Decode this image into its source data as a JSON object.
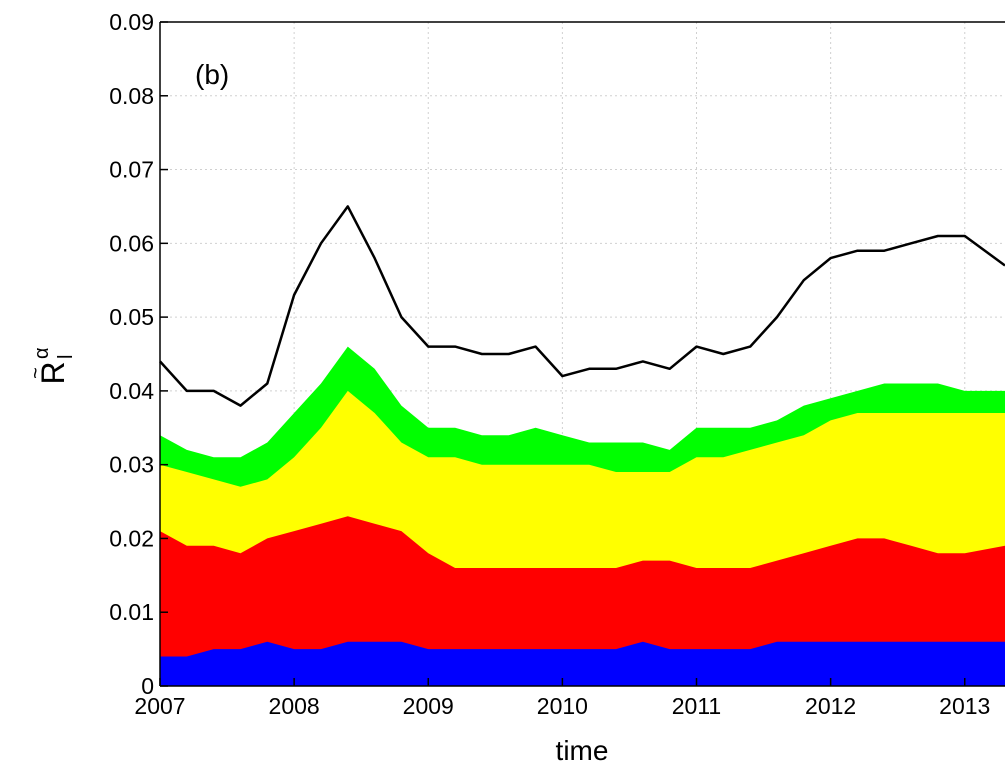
{
  "chart_data": {
    "type": "area",
    "panel_label": "(b)",
    "title": "",
    "xlabel": "time",
    "ylabel": {
      "base": "R",
      "accent": "~",
      "subscript": "l",
      "superscript": "α"
    },
    "xlim": [
      2007,
      2013.3
    ],
    "ylim": [
      0,
      0.09
    ],
    "x_ticks": [
      2007,
      2008,
      2009,
      2010,
      2011,
      2012,
      2013
    ],
    "x_tick_labels": [
      "2007",
      "2008",
      "2009",
      "2010",
      "2011",
      "2012",
      "2013"
    ],
    "y_ticks": [
      0,
      0.01,
      0.02,
      0.03,
      0.04,
      0.05,
      0.06,
      0.07,
      0.08,
      0.09
    ],
    "y_tick_labels": [
      "0",
      "0.01",
      "0.02",
      "0.03",
      "0.04",
      "0.05",
      "0.06",
      "0.07",
      "0.08",
      "0.09"
    ],
    "grid": true,
    "x": [
      2007.0,
      2007.2,
      2007.4,
      2007.6,
      2007.8,
      2008.0,
      2008.2,
      2008.4,
      2008.6,
      2008.8,
      2009.0,
      2009.2,
      2009.4,
      2009.6,
      2009.8,
      2010.0,
      2010.2,
      2010.4,
      2010.6,
      2010.8,
      2011.0,
      2011.2,
      2011.4,
      2011.6,
      2011.8,
      2012.0,
      2012.2,
      2012.4,
      2012.6,
      2012.8,
      2013.0,
      2013.3
    ],
    "series": [
      {
        "color": "#0000ff",
        "values": [
          0.004,
          0.004,
          0.005,
          0.005,
          0.006,
          0.005,
          0.005,
          0.006,
          0.006,
          0.006,
          0.005,
          0.005,
          0.005,
          0.005,
          0.005,
          0.005,
          0.005,
          0.005,
          0.006,
          0.005,
          0.005,
          0.005,
          0.005,
          0.006,
          0.006,
          0.006,
          0.006,
          0.006,
          0.006,
          0.006,
          0.006,
          0.006
        ]
      },
      {
        "color": "#ff0000",
        "values": [
          0.021,
          0.019,
          0.019,
          0.018,
          0.02,
          0.021,
          0.022,
          0.023,
          0.022,
          0.021,
          0.018,
          0.016,
          0.016,
          0.016,
          0.016,
          0.016,
          0.016,
          0.016,
          0.017,
          0.017,
          0.016,
          0.016,
          0.016,
          0.017,
          0.018,
          0.019,
          0.02,
          0.02,
          0.019,
          0.018,
          0.018,
          0.019
        ]
      },
      {
        "color": "#ffff00",
        "values": [
          0.03,
          0.029,
          0.028,
          0.027,
          0.028,
          0.031,
          0.035,
          0.04,
          0.037,
          0.033,
          0.031,
          0.031,
          0.03,
          0.03,
          0.03,
          0.03,
          0.03,
          0.029,
          0.029,
          0.029,
          0.031,
          0.031,
          0.032,
          0.033,
          0.034,
          0.036,
          0.037,
          0.037,
          0.037,
          0.037,
          0.037,
          0.037
        ]
      },
      {
        "color": "#00ff00",
        "values": [
          0.034,
          0.032,
          0.031,
          0.031,
          0.033,
          0.037,
          0.041,
          0.046,
          0.043,
          0.038,
          0.035,
          0.035,
          0.034,
          0.034,
          0.035,
          0.034,
          0.033,
          0.033,
          0.033,
          0.032,
          0.035,
          0.035,
          0.035,
          0.036,
          0.038,
          0.039,
          0.04,
          0.041,
          0.041,
          0.041,
          0.04,
          0.04
        ]
      },
      {
        "color": "#000000",
        "values": [
          0.044,
          0.04,
          0.04,
          0.038,
          0.041,
          0.053,
          0.06,
          0.065,
          0.058,
          0.05,
          0.046,
          0.046,
          0.045,
          0.045,
          0.046,
          0.042,
          0.043,
          0.043,
          0.044,
          0.043,
          0.046,
          0.045,
          0.046,
          0.05,
          0.055,
          0.058,
          0.059,
          0.059,
          0.06,
          0.061,
          0.061,
          0.057
        ]
      }
    ]
  }
}
